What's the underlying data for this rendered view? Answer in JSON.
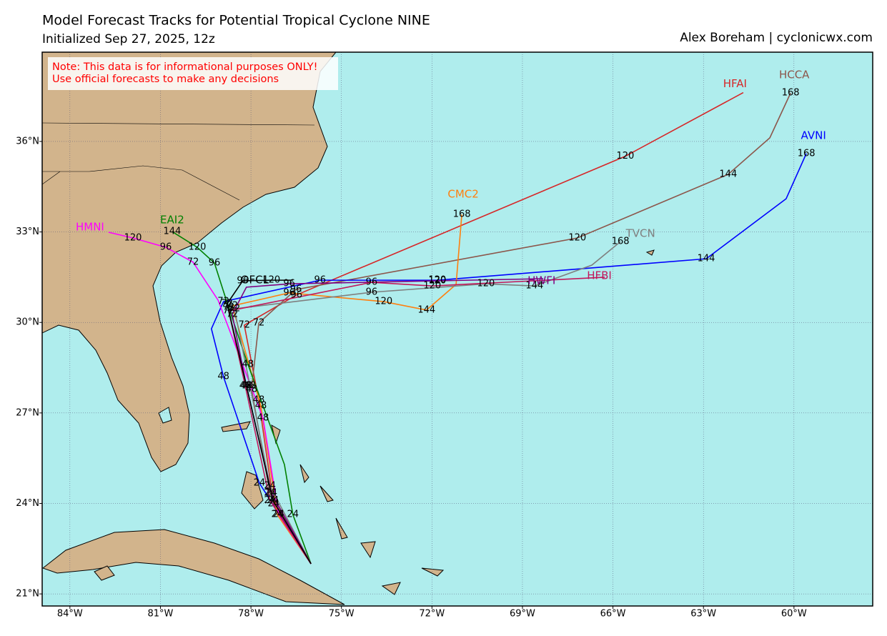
{
  "header": {
    "title": "Model Forecast Tracks  for Potential Tropical Cyclone NINE",
    "subtitle": "Initialized Sep 27, 2025, 12z",
    "credit": "Alex Boreham | cyclonicwx.com"
  },
  "note": {
    "lines": [
      "Note: This data is for informational purposes ONLY!",
      "Use official forecasts to make any decisions"
    ]
  },
  "map": {
    "xlim": [
      -84.92,
      -57.39
    ],
    "ylim": [
      20.6,
      38.96
    ],
    "grid": true,
    "xticks": [
      {
        "value": -84,
        "label": "84°W"
      },
      {
        "value": -81,
        "label": "81°W"
      },
      {
        "value": -78,
        "label": "78°W"
      },
      {
        "value": -75,
        "label": "75°W"
      },
      {
        "value": -72,
        "label": "72°W"
      },
      {
        "value": -69,
        "label": "69°W"
      },
      {
        "value": -66,
        "label": "66°W"
      },
      {
        "value": -63,
        "label": "63°W"
      },
      {
        "value": -60,
        "label": "60°W"
      }
    ],
    "yticks": [
      {
        "value": 21,
        "label": "21°N"
      },
      {
        "value": 24,
        "label": "24°N"
      },
      {
        "value": 27,
        "label": "27°N"
      },
      {
        "value": 30,
        "label": "30°N"
      },
      {
        "value": 33,
        "label": "33°N"
      },
      {
        "value": 36,
        "label": "36°N"
      }
    ],
    "tracks": [
      {
        "name": "HFAI",
        "color": "#d62728",
        "lon": [
          -76.01,
          -77.25,
          -77.74,
          -78.22,
          -76.49,
          -65.59,
          -61.68
        ],
        "lat": [
          22.0,
          23.99,
          27.42,
          29.91,
          30.91,
          35.51,
          37.62
        ],
        "hours": [
          null,
          "24",
          "48",
          "72",
          "96",
          "120",
          null
        ]
      },
      {
        "name": "HCCA",
        "color": "#8c564b",
        "lon": [
          -76.01,
          -77.37,
          -77.98,
          -77.74,
          -76.51,
          -67.18,
          -62.18,
          -60.8,
          -60.11
        ],
        "lat": [
          22.0,
          24.34,
          27.78,
          29.98,
          31.09,
          32.8,
          34.91,
          36.12,
          37.61
        ],
        "hours": [
          null,
          "24",
          "48",
          "72",
          "96",
          "120",
          "144",
          null,
          "168"
        ]
      },
      {
        "name": "AVNI",
        "color": "#0000ff",
        "lon": [
          -76.01,
          -77.72,
          -78.91,
          -79.31,
          -78.91,
          -75.71,
          -71.82,
          -62.91,
          -60.26,
          -59.59
        ],
        "lat": [
          22.0,
          24.67,
          28.2,
          29.79,
          30.69,
          31.4,
          31.4,
          32.11,
          34.1,
          35.6
        ],
        "hours": [
          null,
          "24",
          "48",
          null,
          "72",
          "96",
          "120",
          "144",
          null,
          "168"
        ]
      },
      {
        "name": "CMC2",
        "color": "#ff7f0e",
        "lon": [
          -76.01,
          -77.13,
          -77.67,
          -78.62,
          -76.73,
          -73.6,
          -72.18,
          -71.2,
          -71.01
        ],
        "lat": [
          22.0,
          23.63,
          27.23,
          30.55,
          30.98,
          30.69,
          30.41,
          31.26,
          33.58
        ],
        "hours": [
          null,
          "24",
          "48",
          "72",
          "96",
          "120",
          "144",
          null,
          "168"
        ]
      },
      {
        "name": "HMNI",
        "color": "#ff00ff",
        "lon": [
          -76.01,
          -77.08,
          -77.6,
          -79.09,
          -79.92,
          -80.82,
          -81.91,
          -82.72
        ],
        "lat": [
          22.0,
          23.63,
          26.83,
          30.74,
          32.0,
          32.49,
          32.8,
          32.99
        ],
        "hours": [
          null,
          "24",
          "48",
          null,
          "72",
          "96",
          "120",
          null
        ]
      },
      {
        "name": "EAI2",
        "color": "#008000",
        "lon": [
          -76.01,
          -76.61,
          -76.89,
          -78.1,
          -78.74,
          -79.21,
          -79.78,
          -80.61
        ],
        "lat": [
          22.0,
          23.63,
          25.29,
          28.61,
          30.5,
          31.97,
          32.49,
          33.01
        ],
        "hours": [
          null,
          "24",
          null,
          "48",
          "72",
          "96",
          "120",
          "144"
        ]
      },
      {
        "name": "TVCN",
        "color": "#7f7f7f",
        "lon": [
          -76.01,
          -77.37,
          -78.03,
          -78.55,
          -74.0,
          -70.21,
          -68.6,
          -66.7,
          -65.75
        ],
        "lat": [
          22.0,
          24.58,
          27.9,
          30.45,
          31.0,
          31.28,
          31.21,
          31.9,
          32.68
        ],
        "hours": [
          null,
          "24",
          "48",
          "72",
          "96",
          "120",
          "144",
          null,
          "168"
        ]
      },
      {
        "name": "HWFI",
        "color": "#800080",
        "lon": [
          -76.01,
          -77.32,
          -78.15,
          -78.62,
          -78.15,
          -76.73,
          -71.82,
          -68.31
        ],
        "lat": [
          22.0,
          24.34,
          27.9,
          30.27,
          31.17,
          31.28,
          31.38,
          31.45
        ],
        "hours": [
          null,
          "24",
          "48",
          "72",
          null,
          "96",
          "120",
          null
        ]
      },
      {
        "name": "HFBI",
        "color": "#c2185b",
        "lon": [
          -76.01,
          -77.37,
          -78.19,
          -78.74,
          -74.0,
          -71.99,
          -66.27
        ],
        "lat": [
          22.0,
          24.1,
          27.9,
          30.38,
          31.33,
          31.21,
          31.5
        ],
        "hours": [
          null,
          "24",
          "48",
          "72",
          "96",
          "120",
          null
        ]
      },
      {
        "name": "OFCL",
        "color": "#000000",
        "lon": [
          -76.01,
          -77.27,
          -78.15,
          -78.79,
          -78.27,
          -77.32,
          -76.61
        ],
        "lat": [
          22.0,
          24.1,
          27.9,
          30.62,
          31.38,
          31.4,
          31.4
        ],
        "hours": [
          null,
          "24",
          "48",
          "72",
          "96",
          "120",
          null
        ]
      }
    ]
  }
}
